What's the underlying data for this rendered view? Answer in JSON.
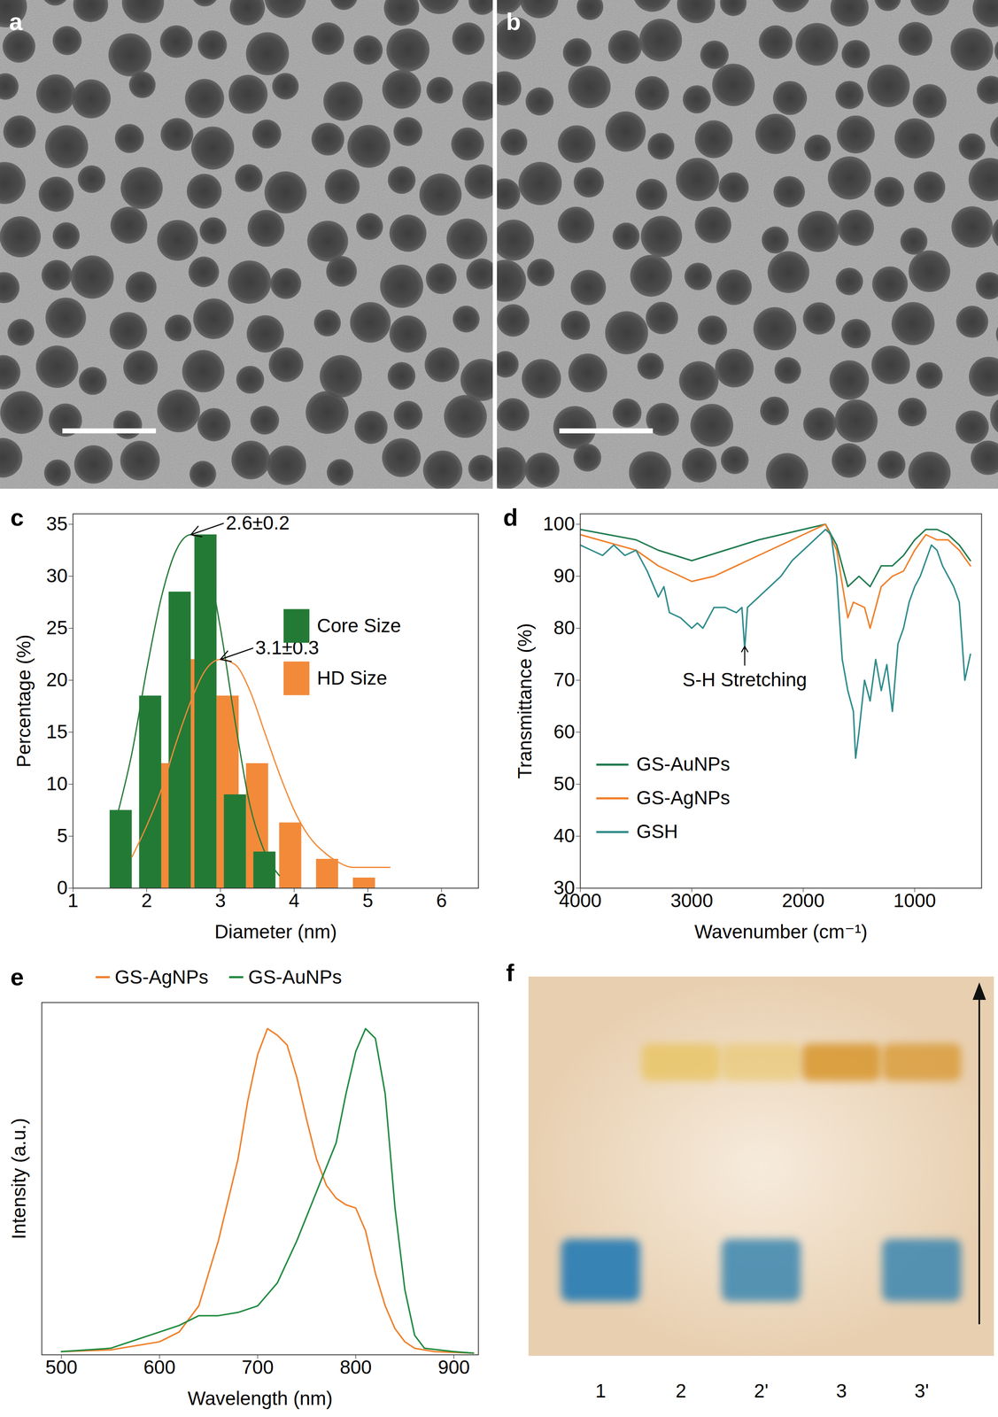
{
  "chart_data": [
    {
      "type": "image",
      "title": "a"
    },
    {
      "type": "image",
      "title": "b"
    },
    {
      "type": "bar",
      "title": "c",
      "xlabel": "Diameter (nm)",
      "ylabel": "Percentage (%)",
      "xlim": [
        1,
        6.5
      ],
      "xticks": [
        1,
        2,
        3,
        4,
        5,
        6
      ],
      "ylim": [
        0,
        36
      ],
      "yticks": [
        0,
        5,
        10,
        15,
        20,
        25,
        30,
        35
      ],
      "legend": "right",
      "series": [
        {
          "name": "Core Size",
          "color": "#237a35",
          "x": [
            1.65,
            2.05,
            2.45,
            2.8,
            3.2,
            3.6
          ],
          "values": [
            7.5,
            18.5,
            28.5,
            34,
            9,
            3.5
          ],
          "fit": {
            "x": [
              1.6,
              1.8,
              2.0,
              2.2,
              2.4,
              2.6,
              2.8,
              3.0,
              3.2,
              3.4,
              3.6,
              3.8
            ],
            "values": [
              7,
              13,
              21,
              28,
              32.5,
              34,
              32,
              25,
              16,
              8,
              3.5,
              1.2
            ]
          }
        },
        {
          "name": "HD Size",
          "color": "#f28a3a",
          "x": [
            2.2,
            2.65,
            3.1,
            3.5,
            3.95,
            4.45,
            4.95
          ],
          "values": [
            12,
            22,
            18.5,
            12,
            6.3,
            2.8,
            1
          ],
          "fit": {
            "x": [
              1.8,
              2.0,
              2.2,
              2.4,
              2.6,
              2.8,
              3.0,
              3.2,
              3.4,
              3.6,
              3.8,
              4.0,
              4.2,
              4.4,
              4.6,
              4.8,
              5.0,
              5.3
            ],
            "values": [
              3,
              6,
              9.5,
              14,
              18,
              21,
              22,
              21.5,
              19,
              15,
              11,
              7.5,
              5,
              3.5,
              2.5,
              2,
              2,
              2
            ]
          }
        }
      ],
      "annotations": [
        {
          "text": "2.6±0.2",
          "x": 2.6,
          "y": 34
        },
        {
          "text": "3.1±0.3",
          "x": 3.0,
          "y": 22
        }
      ]
    },
    {
      "type": "line",
      "title": "d",
      "xlabel": "Wavenumber (cm⁻¹)",
      "ylabel": "Transmittance (%)",
      "xlim": [
        4000,
        400
      ],
      "xticks": [
        4000,
        3000,
        2000,
        1000
      ],
      "ylim": [
        30,
        102
      ],
      "yticks": [
        30,
        40,
        50,
        60,
        70,
        80,
        90,
        100
      ],
      "legend": "bottom-left",
      "series": [
        {
          "name": "GS-AuNPs",
          "color": "#1e7b4f",
          "x": [
            4000,
            3500,
            3300,
            3000,
            2700,
            2400,
            2000,
            1800,
            1700,
            1600,
            1500,
            1400,
            1300,
            1200,
            1100,
            1000,
            900,
            800,
            700,
            600,
            500
          ],
          "values": [
            99,
            97,
            95,
            93,
            95,
            97,
            99,
            100,
            96,
            88,
            90,
            88,
            92,
            92,
            94,
            97,
            99,
            99,
            98,
            96,
            93
          ]
        },
        {
          "name": "GS-AgNPs",
          "color": "#f07f2a",
          "x": [
            4000,
            3500,
            3300,
            3000,
            2800,
            2500,
            2200,
            2000,
            1800,
            1700,
            1600,
            1550,
            1450,
            1400,
            1300,
            1200,
            1100,
            1000,
            900,
            800,
            700,
            600,
            500
          ],
          "values": [
            98,
            95,
            92,
            89,
            90,
            93,
            96,
            98,
            100,
            95,
            82,
            85,
            84,
            80,
            88,
            90,
            91,
            95,
            98,
            97,
            97,
            95,
            92
          ]
        },
        {
          "name": "GSH",
          "color": "#2e8b8b",
          "x": [
            4000,
            3900,
            3800,
            3700,
            3600,
            3500,
            3400,
            3300,
            3250,
            3200,
            3100,
            3000,
            2950,
            2900,
            2850,
            2800,
            2700,
            2600,
            2550,
            2525,
            2500,
            2400,
            2200,
            2100,
            2000,
            1900,
            1800,
            1750,
            1700,
            1650,
            1600,
            1550,
            1530,
            1500,
            1450,
            1400,
            1350,
            1300,
            1250,
            1200,
            1150,
            1100,
            1050,
            1000,
            950,
            900,
            850,
            800,
            750,
            700,
            650,
            600,
            550,
            500
          ],
          "values": [
            96,
            95,
            94,
            96,
            94,
            95,
            91,
            86,
            88,
            83,
            82,
            80,
            81,
            80,
            82,
            84,
            84,
            83,
            84,
            76,
            84,
            86,
            90,
            93,
            95,
            97,
            99,
            98,
            90,
            74,
            68,
            64,
            55,
            60,
            70,
            66,
            74,
            68,
            73,
            64,
            77,
            80,
            85,
            88,
            90,
            93,
            96,
            95,
            92,
            90,
            88,
            85,
            70,
            75
          ]
        }
      ],
      "annotations": [
        {
          "text": "S-H Stretching",
          "x": 2525,
          "y": 76.5
        }
      ]
    },
    {
      "type": "line",
      "title": "e",
      "xlabel": "Wavelength (nm)",
      "ylabel": "Intensity (a.u.)",
      "xlim": [
        480,
        925
      ],
      "xticks": [
        500,
        600,
        700,
        800,
        900
      ],
      "ylim": [
        0,
        1.08
      ],
      "tick_labels": "x",
      "legend": "top",
      "series": [
        {
          "name": "GS-AgNPs",
          "color": "#f07f2a",
          "x": [
            500,
            550,
            600,
            620,
            640,
            660,
            680,
            690,
            700,
            710,
            720,
            730,
            740,
            750,
            760,
            770,
            780,
            790,
            800,
            810,
            820,
            830,
            840,
            850,
            860,
            880,
            920
          ],
          "values": [
            0.01,
            0.015,
            0.04,
            0.07,
            0.15,
            0.35,
            0.6,
            0.78,
            0.92,
            1.0,
            0.98,
            0.95,
            0.85,
            0.72,
            0.6,
            0.52,
            0.48,
            0.46,
            0.45,
            0.38,
            0.25,
            0.15,
            0.08,
            0.04,
            0.02,
            0.01,
            0.005
          ]
        },
        {
          "name": "GS-AuNPs",
          "color": "#1e8a3e",
          "x": [
            500,
            550,
            600,
            620,
            640,
            660,
            680,
            700,
            720,
            740,
            760,
            780,
            790,
            800,
            810,
            820,
            830,
            840,
            850,
            860,
            870,
            900,
            920
          ],
          "values": [
            0.01,
            0.02,
            0.07,
            0.09,
            0.12,
            0.12,
            0.13,
            0.15,
            0.22,
            0.35,
            0.5,
            0.65,
            0.8,
            0.93,
            1.0,
            0.97,
            0.8,
            0.45,
            0.2,
            0.06,
            0.02,
            0.01,
            0.005
          ]
        }
      ]
    },
    {
      "type": "gel",
      "title": "f",
      "categories": [
        "1",
        "2",
        "2'",
        "3",
        "3'"
      ]
    }
  ]
}
